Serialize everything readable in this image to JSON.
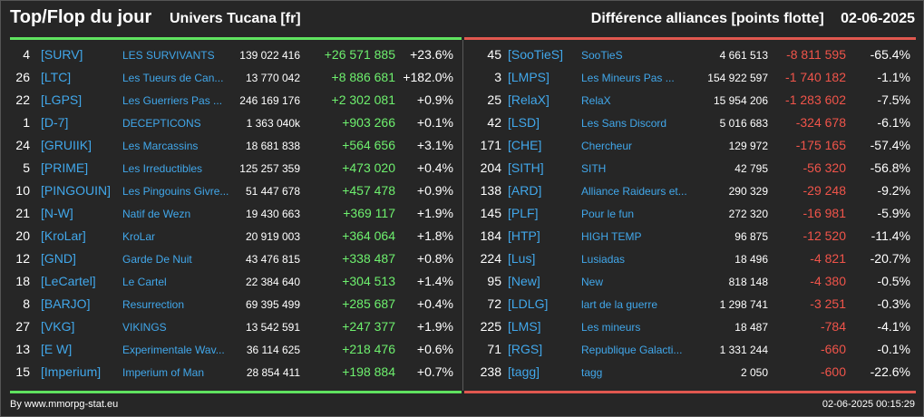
{
  "header": {
    "title": "Top/Flop du jour",
    "universe": "Univers Tucana [fr]",
    "category": "Différence alliances [points flotte]",
    "date": "02-06-2025"
  },
  "colors": {
    "background": "#262626",
    "top_accent": "#5fe25f",
    "flop_accent": "#e0584f",
    "link": "#41a7ea"
  },
  "top": [
    {
      "rank": "4",
      "tag": "[SURV]",
      "name": "LES SURVIVANTS",
      "points": "139 022 416",
      "diff": "+26 571 885",
      "pct": "+23.6%"
    },
    {
      "rank": "26",
      "tag": "[LTC]",
      "name": "Les Tueurs de Can...",
      "points": "13 770 042",
      "diff": "+8 886 681",
      "pct": "+182.0%"
    },
    {
      "rank": "22",
      "tag": "[LGPS]",
      "name": "Les Guerriers Pas ...",
      "points": "246 169 176",
      "diff": "+2 302 081",
      "pct": "+0.9%"
    },
    {
      "rank": "1",
      "tag": "[D-7]",
      "name": "DECEPTICONS",
      "points": "1 363 040k",
      "diff": "+903 266",
      "pct": "+0.1%"
    },
    {
      "rank": "24",
      "tag": "[GRUIIK]",
      "name": "Les Marcassins",
      "points": "18 681 838",
      "diff": "+564 656",
      "pct": "+3.1%"
    },
    {
      "rank": "5",
      "tag": "[PRIME]",
      "name": "Les Irreductibles",
      "points": "125 257 359",
      "diff": "+473 020",
      "pct": "+0.4%"
    },
    {
      "rank": "10",
      "tag": "[PINGOUIN]",
      "name": "Les Pingouins Givre...",
      "points": "51 447 678",
      "diff": "+457 478",
      "pct": "+0.9%"
    },
    {
      "rank": "21",
      "tag": "[N-W]",
      "name": "Natif de Wezn",
      "points": "19 430 663",
      "diff": "+369 117",
      "pct": "+1.9%"
    },
    {
      "rank": "20",
      "tag": "[KroLar]",
      "name": "KroLar",
      "points": "20 919 003",
      "diff": "+364 064",
      "pct": "+1.8%"
    },
    {
      "rank": "12",
      "tag": "[GND]",
      "name": "Garde De Nuit",
      "points": "43 476 815",
      "diff": "+338 487",
      "pct": "+0.8%"
    },
    {
      "rank": "18",
      "tag": "[LeCartel]",
      "name": "Le Cartel",
      "points": "22 384 640",
      "diff": "+304 513",
      "pct": "+1.4%"
    },
    {
      "rank": "8",
      "tag": "[BARJO]",
      "name": "Resurrection",
      "points": "69 395 499",
      "diff": "+285 687",
      "pct": "+0.4%"
    },
    {
      "rank": "27",
      "tag": "[VKG]",
      "name": "VIKINGS",
      "points": "13 542 591",
      "diff": "+247 377",
      "pct": "+1.9%"
    },
    {
      "rank": "13",
      "tag": "[E W]",
      "name": "Experimentale Wav...",
      "points": "36 114 625",
      "diff": "+218 476",
      "pct": "+0.6%"
    },
    {
      "rank": "15",
      "tag": "[Imperium]",
      "name": "Imperium of Man",
      "points": "28 854 411",
      "diff": "+198 884",
      "pct": "+0.7%"
    }
  ],
  "flop": [
    {
      "rank": "45",
      "tag": "[SooTieS]",
      "name": "SooTieS",
      "points": "4 661 513",
      "diff": "-8 811 595",
      "pct": "-65.4%"
    },
    {
      "rank": "3",
      "tag": "[LMPS]",
      "name": "Les Mineurs Pas ...",
      "points": "154 922 597",
      "diff": "-1 740 182",
      "pct": "-1.1%"
    },
    {
      "rank": "25",
      "tag": "[RelaX]",
      "name": "RelaX",
      "points": "15 954 206",
      "diff": "-1 283 602",
      "pct": "-7.5%"
    },
    {
      "rank": "42",
      "tag": "[LSD]",
      "name": "Les Sans Discord",
      "points": "5 016 683",
      "diff": "-324 678",
      "pct": "-6.1%"
    },
    {
      "rank": "171",
      "tag": "[CHE]",
      "name": "Chercheur",
      "points": "129 972",
      "diff": "-175 165",
      "pct": "-57.4%"
    },
    {
      "rank": "204",
      "tag": "[SITH]",
      "name": "SITH",
      "points": "42 795",
      "diff": "-56 320",
      "pct": "-56.8%"
    },
    {
      "rank": "138",
      "tag": "[ARD]",
      "name": "Alliance Raideurs et...",
      "points": "290 329",
      "diff": "-29 248",
      "pct": "-9.2%"
    },
    {
      "rank": "145",
      "tag": "[PLF]",
      "name": "Pour le fun",
      "points": "272 320",
      "diff": "-16 981",
      "pct": "-5.9%"
    },
    {
      "rank": "184",
      "tag": "[HTP]",
      "name": "HIGH TEMP",
      "points": "96 875",
      "diff": "-12 520",
      "pct": "-11.4%"
    },
    {
      "rank": "224",
      "tag": "[Lus]",
      "name": "Lusiadas",
      "points": "18 496",
      "diff": "-4 821",
      "pct": "-20.7%"
    },
    {
      "rank": "95",
      "tag": "[New]",
      "name": "New",
      "points": "818 148",
      "diff": "-4 380",
      "pct": "-0.5%"
    },
    {
      "rank": "72",
      "tag": "[LDLG]",
      "name": "lart de la guerre",
      "points": "1 298 741",
      "diff": "-3 251",
      "pct": "-0.3%"
    },
    {
      "rank": "225",
      "tag": "[LMS]",
      "name": "Les mineurs",
      "points": "18 487",
      "diff": "-784",
      "pct": "-4.1%"
    },
    {
      "rank": "71",
      "tag": "[RGS]",
      "name": "Republique Galacti...",
      "points": "1 331 244",
      "diff": "-660",
      "pct": "-0.1%"
    },
    {
      "rank": "238",
      "tag": "[tagg]",
      "name": "tagg",
      "points": "2 050",
      "diff": "-600",
      "pct": "-22.6%"
    }
  ],
  "footer": {
    "credit": "By www.mmorpg-stat.eu",
    "timestamp": "02-06-2025 00:15:29"
  }
}
